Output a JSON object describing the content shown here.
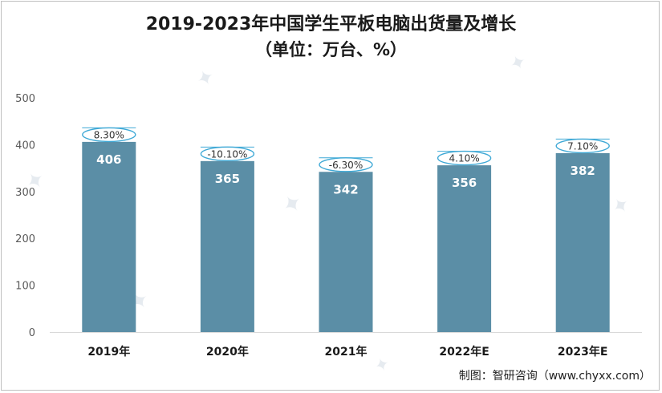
{
  "chart_data": {
    "type": "bar",
    "title": "2019-2023年中国学生平板电脑出货量及增长",
    "subtitle": "（单位：万台、%）",
    "categories": [
      "2019年",
      "2020年",
      "2021年",
      "2022年E",
      "2023年E"
    ],
    "values": [
      406,
      365,
      342,
      356,
      382
    ],
    "growth_labels": [
      "8.30%",
      "-10.10%",
      "-6.30%",
      "4.10%",
      "7.10%"
    ],
    "ylim": [
      0,
      500
    ],
    "yticks": [
      0,
      100,
      200,
      300,
      400,
      500
    ],
    "grid": false,
    "colors": {
      "bar": "#5b8ea6",
      "ellipse": "#3fa9d6",
      "text": "#1a1a1a"
    }
  },
  "footer": "制图：智研咨询（www.chyxx.com）"
}
